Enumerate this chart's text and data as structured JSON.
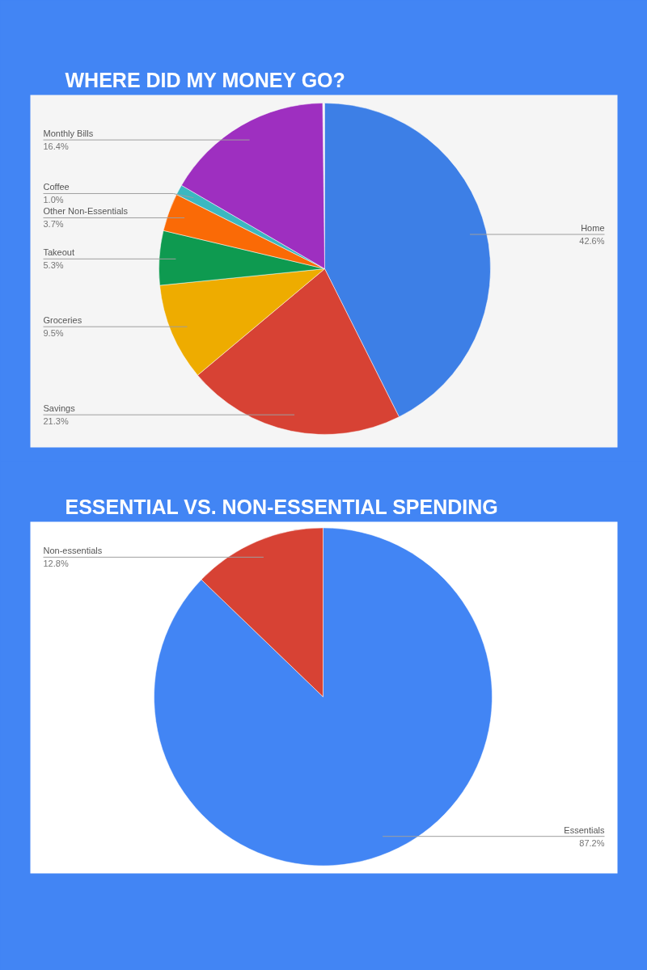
{
  "chart_data": [
    {
      "type": "pie",
      "title": "WHERE DID MY MONEY GO?",
      "categories": [
        "Home",
        "Savings",
        "Groceries",
        "Takeout",
        "Other Non-Essentials",
        "Coffee",
        "Monthly Bills"
      ],
      "values": [
        42.6,
        21.3,
        9.5,
        5.3,
        3.7,
        1.0,
        16.4
      ],
      "value_labels": [
        "42.6%",
        "21.3%",
        "9.5%",
        "5.3%",
        "3.7%",
        "1.0%",
        "16.4%"
      ],
      "colors": [
        "#3d7fe6",
        "#d74234",
        "#eeac00",
        "#0e9a50",
        "#fa6a06",
        "#3bb8c0",
        "#9e2fc0"
      ]
    },
    {
      "type": "pie",
      "title": "ESSENTIAL VS. NON-ESSENTIAL SPENDING",
      "categories": [
        "Essentials",
        "Non-essentials"
      ],
      "values": [
        87.2,
        12.8
      ],
      "value_labels": [
        "87.2%",
        "12.8%"
      ],
      "colors": [
        "#4285f4",
        "#d74234"
      ]
    }
  ]
}
